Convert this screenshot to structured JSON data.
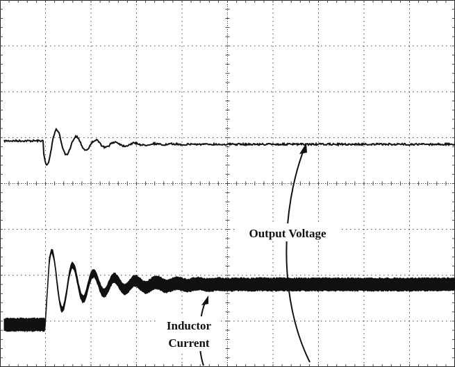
{
  "annotations": [
    {
      "lines": [
        "Output Voltage"
      ]
    },
    {
      "lines": [
        "Inductor",
        "Current"
      ]
    }
  ]
}
